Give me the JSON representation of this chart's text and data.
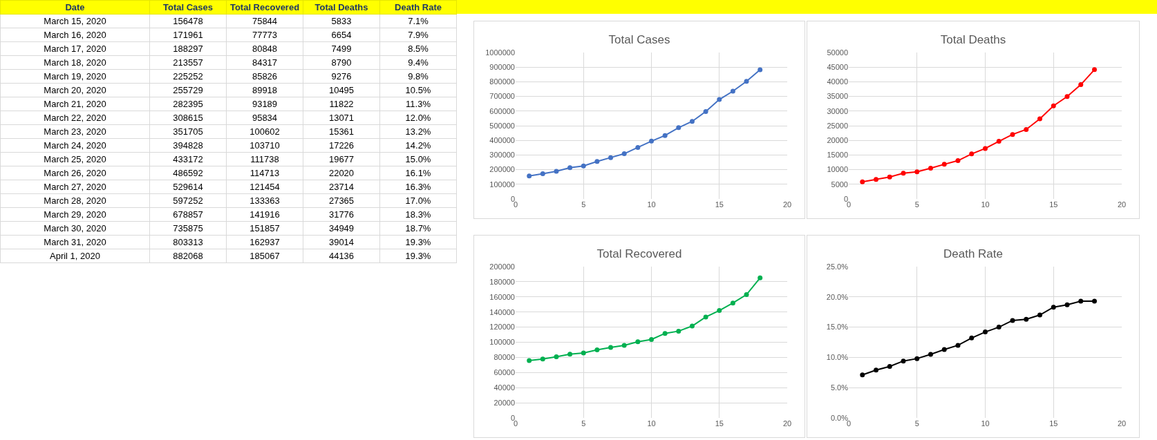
{
  "chart_data": [
    {
      "type": "other",
      "xlabel": "Date",
      "categories": [
        "March 15, 2020",
        "March 16, 2020",
        "March 17, 2020",
        "March 18, 2020",
        "March 19, 2020",
        "March 20, 2020",
        "March 21, 2020",
        "March 22, 2020",
        "March 23, 2020",
        "March 24, 2020",
        "March 25, 2020",
        "March 26, 2020",
        "March 27, 2020",
        "March 28, 2020",
        "March 29, 2020",
        "March 30, 2020",
        "March 31, 2020",
        "April 1, 2020"
      ],
      "series": [
        {
          "name": "Total Cases",
          "values": [
            156478,
            171961,
            188297,
            213557,
            225252,
            255729,
            282395,
            308615,
            351705,
            394828,
            433172,
            486592,
            529614,
            597252,
            678857,
            735875,
            803313,
            882068
          ]
        },
        {
          "name": "Total Recovered",
          "values": [
            75844,
            77773,
            80848,
            84317,
            85826,
            89918,
            93189,
            95834,
            100602,
            103710,
            111738,
            114713,
            121454,
            133363,
            141916,
            151857,
            162937,
            185067
          ]
        },
        {
          "name": "Total Deaths",
          "values": [
            5833,
            6654,
            7499,
            8790,
            9276,
            10495,
            11822,
            13071,
            15361,
            17226,
            19677,
            22020,
            23714,
            27365,
            31776,
            34949,
            39014,
            44136
          ]
        },
        {
          "name": "Death Rate",
          "values": [
            7.1,
            7.9,
            8.5,
            9.4,
            9.8,
            10.5,
            11.3,
            12.0,
            13.2,
            14.2,
            15.0,
            16.1,
            16.3,
            17.0,
            18.3,
            18.7,
            19.3,
            19.3
          ],
          "value_labels": [
            "7.1%",
            "7.9%",
            "8.5%",
            "9.4%",
            "9.8%",
            "10.5%",
            "11.3%",
            "12.0%",
            "13.2%",
            "14.2%",
            "15.0%",
            "16.1%",
            "16.3%",
            "17.0%",
            "18.3%",
            "18.7%",
            "19.3%",
            "19.3%"
          ]
        }
      ],
      "data_labels": true
    },
    {
      "type": "line",
      "title": "Total Cases",
      "x": [
        1,
        2,
        3,
        4,
        5,
        6,
        7,
        8,
        9,
        10,
        11,
        12,
        13,
        14,
        15,
        16,
        17,
        18
      ],
      "series": [
        {
          "color": "#4472c4",
          "values": [
            156478,
            171961,
            188297,
            213557,
            225252,
            255729,
            282395,
            308615,
            351705,
            394828,
            433172,
            486592,
            529614,
            597252,
            678857,
            735875,
            803313,
            882068
          ]
        }
      ],
      "xlim": [
        0,
        20
      ],
      "xticks": [
        0,
        5,
        10,
        15,
        20
      ],
      "ylim": [
        0,
        1000000
      ],
      "yticks": [
        0,
        100000,
        200000,
        300000,
        400000,
        500000,
        600000,
        700000,
        800000,
        900000,
        1000000
      ],
      "grid": true,
      "marker": "circle",
      "line_style": "solid"
    },
    {
      "type": "line",
      "title": "Total Deaths",
      "x": [
        1,
        2,
        3,
        4,
        5,
        6,
        7,
        8,
        9,
        10,
        11,
        12,
        13,
        14,
        15,
        16,
        17,
        18
      ],
      "series": [
        {
          "color": "#ff0000",
          "values": [
            5833,
            6654,
            7499,
            8790,
            9276,
            10495,
            11822,
            13071,
            15361,
            17226,
            19677,
            22020,
            23714,
            27365,
            31776,
            34949,
            39014,
            44136
          ]
        }
      ],
      "xlim": [
        0,
        20
      ],
      "xticks": [
        0,
        5,
        10,
        15,
        20
      ],
      "ylim": [
        0,
        50000
      ],
      "yticks": [
        0,
        5000,
        10000,
        15000,
        20000,
        25000,
        30000,
        35000,
        40000,
        45000,
        50000
      ],
      "grid": true,
      "marker": "circle",
      "line_style": "solid"
    },
    {
      "type": "line",
      "title": "Total Recovered",
      "x": [
        1,
        2,
        3,
        4,
        5,
        6,
        7,
        8,
        9,
        10,
        11,
        12,
        13,
        14,
        15,
        16,
        17,
        18
      ],
      "series": [
        {
          "color": "#00b050",
          "values": [
            75844,
            77773,
            80848,
            84317,
            85826,
            89918,
            93189,
            95834,
            100602,
            103710,
            111738,
            114713,
            121454,
            133363,
            141916,
            151857,
            162937,
            185067
          ]
        }
      ],
      "xlim": [
        0,
        20
      ],
      "xticks": [
        0,
        5,
        10,
        15,
        20
      ],
      "ylim": [
        0,
        200000
      ],
      "yticks": [
        0,
        20000,
        40000,
        60000,
        80000,
        100000,
        120000,
        140000,
        160000,
        180000,
        200000
      ],
      "grid": true,
      "marker": "circle",
      "line_style": "solid"
    },
    {
      "type": "line",
      "title": "Death Rate",
      "x": [
        1,
        2,
        3,
        4,
        5,
        6,
        7,
        8,
        9,
        10,
        11,
        12,
        13,
        14,
        15,
        16,
        17,
        18
      ],
      "series": [
        {
          "color": "#000000",
          "values": [
            7.1,
            7.9,
            8.5,
            9.4,
            9.8,
            10.5,
            11.3,
            12.0,
            13.2,
            14.2,
            15.0,
            16.1,
            16.3,
            17.0,
            18.3,
            18.7,
            19.3,
            19.3
          ]
        }
      ],
      "xlim": [
        0,
        20
      ],
      "xticks": [
        0,
        5,
        10,
        15,
        20
      ],
      "ylim": [
        0,
        25
      ],
      "yticks": [
        {
          "value": 0,
          "label": "0.0%"
        },
        {
          "value": 5,
          "label": "5.0%"
        },
        {
          "value": 10,
          "label": "10.0%"
        },
        {
          "value": 15,
          "label": "15.0%"
        },
        {
          "value": 20,
          "label": "20.0%"
        },
        {
          "value": 25,
          "label": "25.0%"
        }
      ],
      "grid": true,
      "marker": "circle",
      "line_style": "solid"
    }
  ]
}
